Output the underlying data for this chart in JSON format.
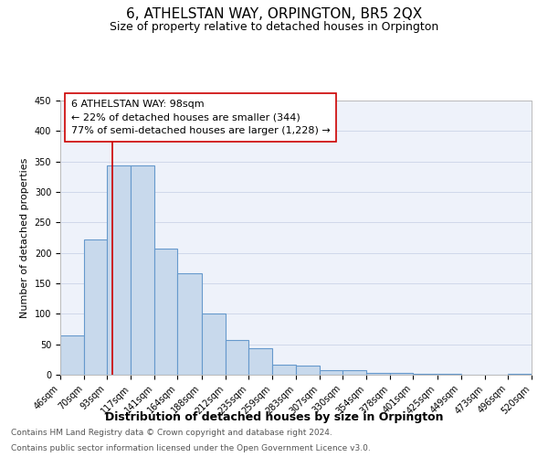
{
  "title": "6, ATHELSTAN WAY, ORPINGTON, BR5 2QX",
  "subtitle": "Size of property relative to detached houses in Orpington",
  "xlabel": "Distribution of detached houses by size in Orpington",
  "ylabel": "Number of detached properties",
  "bin_edges": [
    46,
    70,
    93,
    117,
    141,
    164,
    188,
    212,
    235,
    259,
    283,
    307,
    330,
    354,
    378,
    401,
    425,
    449,
    473,
    496,
    520
  ],
  "bar_heights": [
    65,
    222,
    344,
    344,
    207,
    167,
    100,
    57,
    43,
    16,
    15,
    8,
    7,
    3,
    3,
    2,
    1,
    0,
    0,
    1
  ],
  "bar_color": "#c8d9ec",
  "bar_edge_color": "#6699cc",
  "bar_edge_width": 0.8,
  "reference_line_x": 98,
  "reference_line_color": "#cc0000",
  "ylim": [
    0,
    450
  ],
  "yticks": [
    0,
    50,
    100,
    150,
    200,
    250,
    300,
    350,
    400,
    450
  ],
  "xtick_labels": [
    "46sqm",
    "70sqm",
    "93sqm",
    "117sqm",
    "141sqm",
    "164sqm",
    "188sqm",
    "212sqm",
    "235sqm",
    "259sqm",
    "283sqm",
    "307sqm",
    "330sqm",
    "354sqm",
    "378sqm",
    "401sqm",
    "425sqm",
    "449sqm",
    "473sqm",
    "496sqm",
    "520sqm"
  ],
  "xtick_positions": [
    46,
    70,
    93,
    117,
    141,
    164,
    188,
    212,
    235,
    259,
    283,
    307,
    330,
    354,
    378,
    401,
    425,
    449,
    473,
    496,
    520
  ],
  "annotation_line1": "6 ATHELSTAN WAY: 98sqm",
  "annotation_line2": "← 22% of detached houses are smaller (344)",
  "annotation_line3": "77% of semi-detached houses are larger (1,228) →",
  "grid_color": "#d0d8ea",
  "background_color": "#eef2fa",
  "footnote_line1": "Contains HM Land Registry data © Crown copyright and database right 2024.",
  "footnote_line2": "Contains public sector information licensed under the Open Government Licence v3.0.",
  "title_fontsize": 11,
  "subtitle_fontsize": 9,
  "xlabel_fontsize": 9,
  "ylabel_fontsize": 8,
  "tick_fontsize": 7,
  "annotation_fontsize": 8,
  "footnote_fontsize": 6.5
}
